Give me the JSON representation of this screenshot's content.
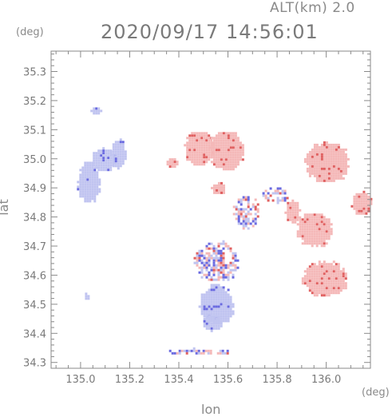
{
  "header": {
    "altitude": "ALT(km)  2.0",
    "datetime": "2020/09/17  14:56:01"
  },
  "axes": {
    "y_unit": "(deg)",
    "x_unit": "(deg)",
    "xlabel": "lon",
    "ylabel": "lat"
  },
  "chart_data": {
    "type": "heatmap",
    "title": "2020/09/17  14:56:01",
    "xlabel": "lon",
    "ylabel": "lat",
    "xlim": [
      134.88,
      136.18
    ],
    "ylim": [
      34.28,
      35.37
    ],
    "x_ticks": [
      "135.0",
      "135.2",
      "135.4",
      "135.6",
      "135.8",
      "136.0"
    ],
    "x_tick_values": [
      135.0,
      135.2,
      135.4,
      135.6,
      135.8,
      136.0
    ],
    "y_ticks": [
      "34.3",
      "34.4",
      "34.5",
      "34.6",
      "34.7",
      "34.8",
      "34.9",
      "35.0",
      "35.1",
      "35.2",
      "35.3"
    ],
    "y_tick_values": [
      34.3,
      34.4,
      34.5,
      34.6,
      34.7,
      34.8,
      34.9,
      35.0,
      35.1,
      35.2,
      35.3
    ],
    "colors": {
      "positive": "#f4b8b8",
      "positive_strong": "#e06060",
      "negative": "#c0c4f0",
      "negative_strong": "#6a6ae0",
      "axis": "#8a8a8a"
    },
    "regions": [
      {
        "sign": "negative",
        "lon": 135.03,
        "lat": 34.92,
        "rlon": 0.045,
        "rlat": 0.07
      },
      {
        "sign": "negative",
        "lon": 135.09,
        "lat": 35.0,
        "rlon": 0.05,
        "rlat": 0.04
      },
      {
        "sign": "negative",
        "lon": 135.15,
        "lat": 35.02,
        "rlon": 0.03,
        "rlat": 0.05
      },
      {
        "sign": "negative",
        "lon": 135.06,
        "lat": 35.17,
        "rlon": 0.02,
        "rlat": 0.015
      },
      {
        "sign": "positive",
        "lon": 135.37,
        "lat": 34.99,
        "rlon": 0.02,
        "rlat": 0.02
      },
      {
        "sign": "positive",
        "lon": 135.48,
        "lat": 35.04,
        "rlon": 0.06,
        "rlat": 0.06
      },
      {
        "sign": "positive",
        "lon": 135.59,
        "lat": 35.03,
        "rlon": 0.07,
        "rlat": 0.07
      },
      {
        "sign": "positive",
        "lon": 135.56,
        "lat": 34.9,
        "rlon": 0.03,
        "rlat": 0.02
      },
      {
        "sign": "mixed",
        "lon": 135.67,
        "lat": 34.82,
        "rlon": 0.05,
        "rlat": 0.06
      },
      {
        "sign": "mixed",
        "lon": 135.79,
        "lat": 34.88,
        "rlon": 0.05,
        "rlat": 0.03
      },
      {
        "sign": "mixed",
        "lon": 135.55,
        "lat": 34.65,
        "rlon": 0.09,
        "rlat": 0.07
      },
      {
        "sign": "negative",
        "lon": 135.55,
        "lat": 34.5,
        "rlon": 0.07,
        "rlat": 0.07
      },
      {
        "sign": "negative",
        "lon": 135.53,
        "lat": 34.44,
        "rlon": 0.04,
        "rlat": 0.03
      },
      {
        "sign": "mixed",
        "lon": 135.48,
        "lat": 34.34,
        "rlon": 0.12,
        "rlat": 0.012
      },
      {
        "sign": "negative",
        "lon": 135.02,
        "lat": 34.53,
        "rlon": 0.012,
        "rlat": 0.01
      },
      {
        "sign": "positive",
        "lon": 136.0,
        "lat": 34.99,
        "rlon": 0.09,
        "rlat": 0.07
      },
      {
        "sign": "positive",
        "lon": 136.14,
        "lat": 34.85,
        "rlon": 0.04,
        "rlat": 0.04
      },
      {
        "sign": "positive",
        "lon": 135.95,
        "lat": 34.76,
        "rlon": 0.07,
        "rlat": 0.06
      },
      {
        "sign": "positive",
        "lon": 135.99,
        "lat": 34.59,
        "rlon": 0.09,
        "rlat": 0.06
      },
      {
        "sign": "positive",
        "lon": 135.86,
        "lat": 34.82,
        "rlon": 0.03,
        "rlat": 0.04
      }
    ]
  }
}
